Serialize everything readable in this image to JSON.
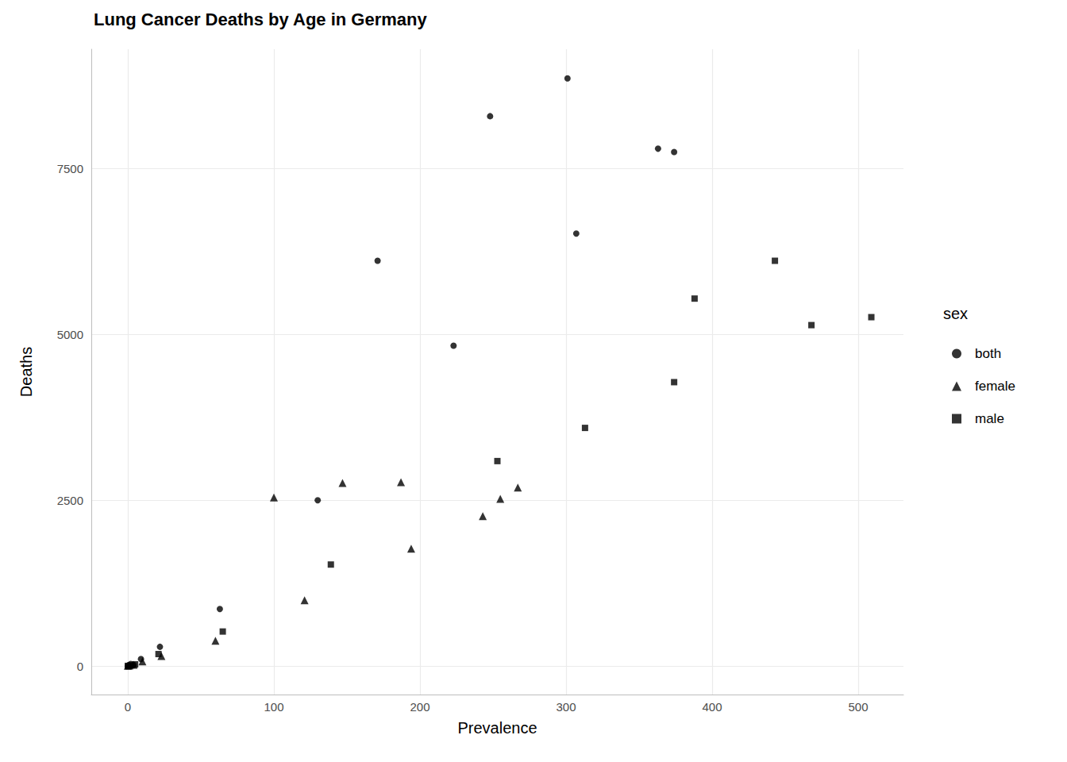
{
  "chart_data": {
    "type": "scatter",
    "title": "Lung Cancer Deaths by Age in Germany",
    "x_label": "Prevalence",
    "y_label": "Deaths",
    "legend_title": "sex",
    "legend": "right",
    "grid": true,
    "xlim": [
      -25,
      531
    ],
    "ylim": [
      -430,
      9300
    ],
    "xticks": [
      0,
      100,
      200,
      300,
      400,
      500
    ],
    "yticks": [
      0,
      2500,
      5000,
      7500
    ],
    "series": [
      {
        "name": "both",
        "color": "#000000",
        "marker": "circle",
        "x": [
          301,
          248,
          363,
          374,
          307,
          171,
          223,
          130,
          63,
          22,
          9,
          2,
          0,
          4
        ],
        "values": [
          8860,
          8290,
          7800,
          7750,
          6520,
          6110,
          4830,
          2500,
          860,
          290,
          105,
          30,
          5,
          15
        ]
      },
      {
        "name": "female",
        "color": "#000000",
        "marker": "triangle",
        "x": [
          100,
          147,
          187,
          194,
          243,
          255,
          267,
          121,
          60,
          23,
          10,
          0,
          1,
          4
        ],
        "values": [
          2540,
          2760,
          2770,
          1770,
          2260,
          2520,
          2690,
          990,
          380,
          150,
          70,
          3,
          8,
          20
        ]
      },
      {
        "name": "male",
        "color": "#000000",
        "marker": "square",
        "x": [
          443,
          388,
          468,
          509,
          374,
          313,
          253,
          139,
          65,
          21,
          0,
          2,
          5
        ],
        "values": [
          6110,
          5540,
          5140,
          5260,
          4280,
          3590,
          3090,
          1530,
          520,
          180,
          2,
          10,
          25
        ]
      }
    ]
  }
}
